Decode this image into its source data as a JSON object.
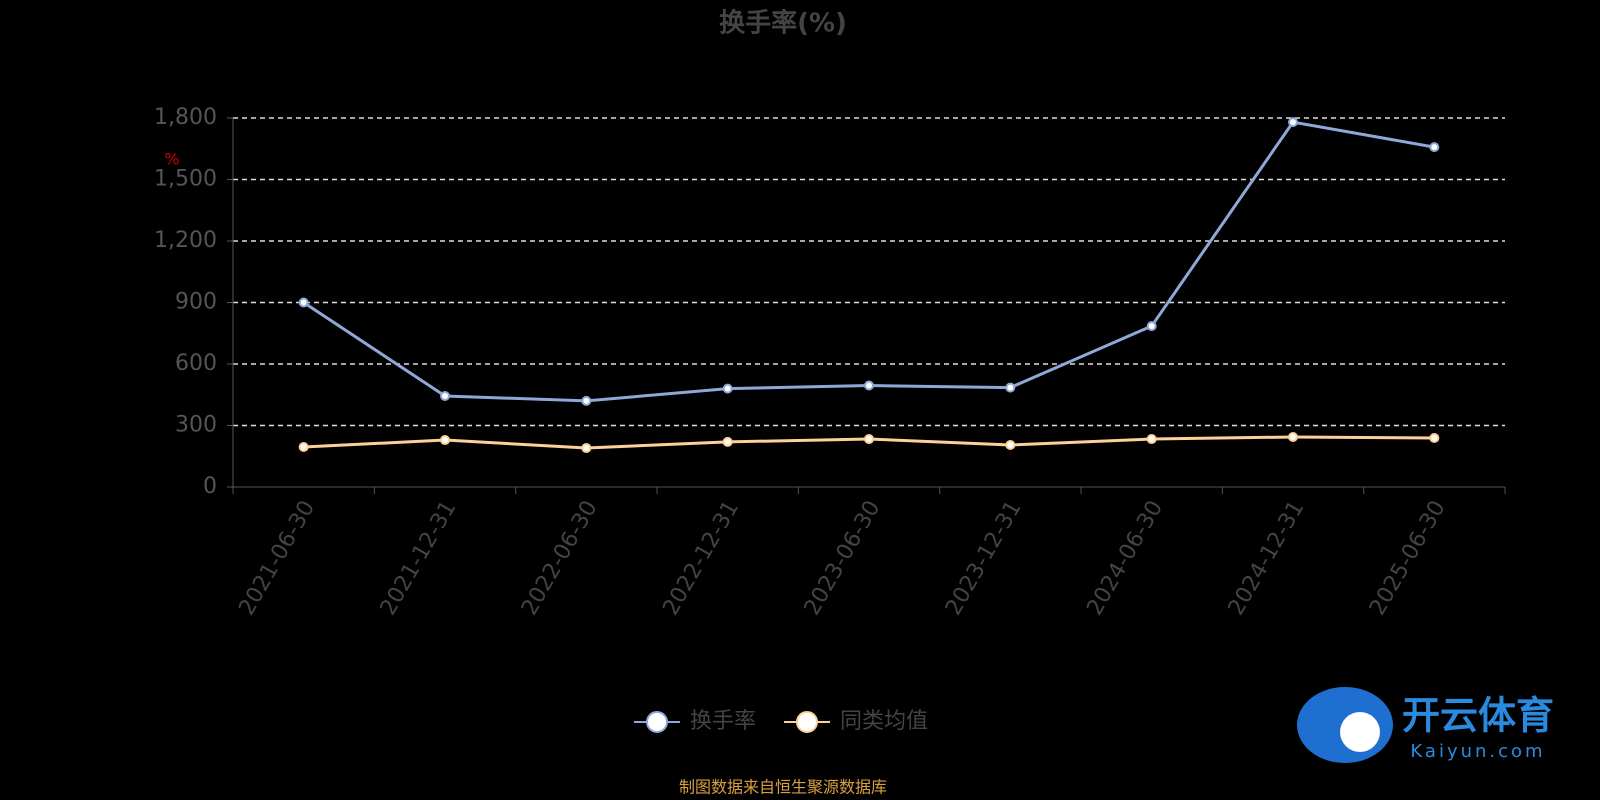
{
  "chart_data": {
    "type": "line",
    "title": "换手率(%)",
    "y_unit": "%",
    "categories": [
      "2021-06-30",
      "2021-12-31",
      "2022-06-30",
      "2022-12-31",
      "2023-06-30",
      "2023-12-31",
      "2024-06-30",
      "2024-12-31",
      "2025-06-30"
    ],
    "series": [
      {
        "name": "换手率",
        "color": "#8fa8d8",
        "values": [
          900,
          444,
          420,
          480,
          495,
          485,
          785,
          1780,
          1658
        ]
      },
      {
        "name": "同类均值",
        "color": "#fcd29a",
        "values": [
          195,
          229,
          190,
          220,
          234,
          205,
          234,
          244,
          239
        ]
      }
    ],
    "ylim": [
      0,
      1800
    ],
    "yticks": [
      0,
      300,
      600,
      900,
      {
        "value": 1200,
        "label": "1,200"
      },
      {
        "value": 1500,
        "label": "1,500"
      },
      {
        "value": 1800,
        "label": "1,800"
      }
    ],
    "grid": true,
    "legend": "bottom",
    "source": "制图数据来自恒生聚源数据库",
    "watermark": {
      "name": "开云体育",
      "site": "Kaiyun.com"
    }
  }
}
